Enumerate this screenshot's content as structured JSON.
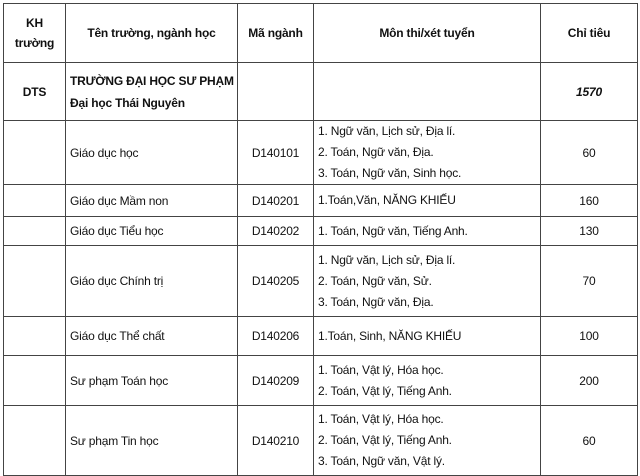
{
  "headers": [
    "KH trường",
    "Tên trường, ngành học",
    "Mã ngành",
    "Môn thi/xét tuyển",
    "Chỉ tiêu"
  ],
  "school": {
    "code": "DTS",
    "name_lines": [
      "TRƯỜNG ĐẠI HỌC SƯ PHẠM",
      "Đại học Thái Nguyên"
    ],
    "quota": "1570"
  },
  "rows": [
    {
      "name": "Giáo dục học",
      "code": "D140101",
      "subjects": [
        "1. Ngữ văn, Lịch sử, Địa lí.",
        "2. Toán, Ngữ văn, Địa.",
        "3. Toán, Ngữ  văn, Sinh học."
      ],
      "quota": "60"
    },
    {
      "name": "Giáo dục Mầm non",
      "code": "D140201",
      "subjects": [
        "1.Toán,Văn, NĂNG KHIẾU"
      ],
      "quota": "160"
    },
    {
      "name": "Giáo dục Tiểu học",
      "code": "D140202",
      "subjects": [
        "1. Toán, Ngữ văn, Tiếng Anh."
      ],
      "quota": "130"
    },
    {
      "name": "Giáo dục Chính trị",
      "code": "D140205",
      "subjects": [
        "1. Ngữ văn, Lịch sử, Địa lí.",
        "2. Toán, Ngữ văn, Sử.",
        "3. Toán, Ngữ văn, Địa."
      ],
      "quota": "70"
    },
    {
      "name": "Giáo dục Thể chất",
      "code": "D140206",
      "subjects": [
        "1.Toán, Sinh, NĂNG KHIẾU"
      ],
      "quota": "100"
    },
    {
      "name": "Sư phạm Toán học",
      "code": "D140209",
      "subjects": [
        "1. Toán, Vật  lý, Hóa học.",
        "2. Toán, Vật  lý, Tiếng Anh."
      ],
      "quota": "200"
    },
    {
      "name": "Sư phạm Tin học",
      "code": "D140210",
      "subjects": [
        "1. Toán, Vật lý, Hóa học.",
        "2. Toán, Vật lý, Tiếng Anh.",
        "3. Toán, Ngữ văn, Vật lý."
      ],
      "quota": "60"
    }
  ]
}
